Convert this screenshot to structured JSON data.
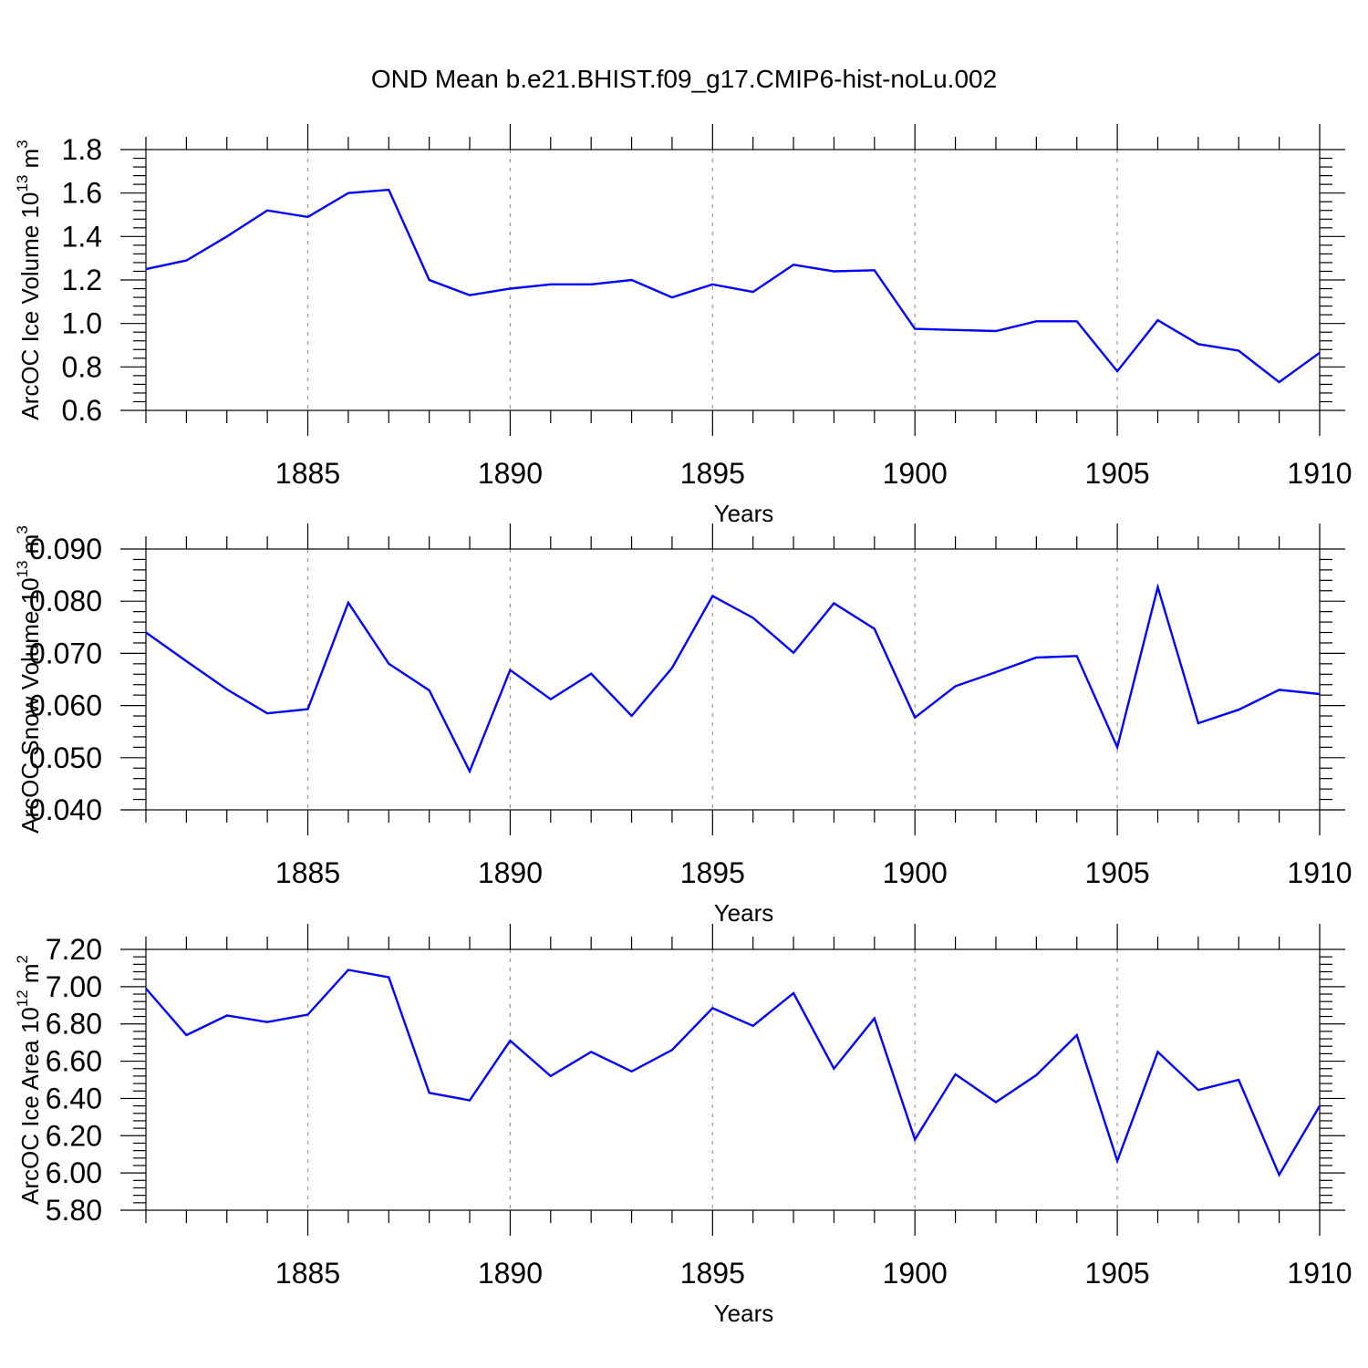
{
  "figure": {
    "title": "OND Mean b.e21.BHIST.f09_g17.CMIP6-hist-noLu.002"
  },
  "chart_data": [
    {
      "type": "line",
      "title": "OND Mean b.e21.BHIST.f09_g17.CMIP6-hist-noLu.002",
      "xlabel": "Years",
      "ylabel": "ArcOC Ice Volume 10",
      "ylabel_exponent": "13",
      "ylabel_unit": " m",
      "ylabel_unit_exponent": "3",
      "xlim": [
        1881,
        1910
      ],
      "ylim": [
        0.6,
        1.8
      ],
      "x_ticks": [
        1885,
        1890,
        1895,
        1900,
        1905,
        1910
      ],
      "y_ticks": [
        "0.6",
        "0.8",
        "1.0",
        "1.2",
        "1.4",
        "1.6",
        "1.8"
      ],
      "y_minor_step": 0.04,
      "grid": "vertical-dashed",
      "line_color": "#0000ff",
      "series": [
        {
          "x": [
            1881,
            1882,
            1883,
            1884,
            1885,
            1886,
            1887,
            1888,
            1889,
            1890,
            1891,
            1892,
            1893,
            1894,
            1895,
            1896,
            1897,
            1898,
            1899,
            1900,
            1901,
            1902,
            1903,
            1904,
            1905,
            1906,
            1907,
            1908,
            1909,
            1910
          ],
          "values": [
            1.25,
            1.29,
            1.4,
            1.52,
            1.49,
            1.6,
            1.615,
            1.2,
            1.13,
            1.16,
            1.18,
            1.18,
            1.2,
            1.12,
            1.18,
            1.145,
            1.27,
            1.24,
            1.245,
            0.975,
            0.97,
            0.965,
            1.01,
            1.01,
            0.78,
            1.015,
            0.905,
            0.875,
            0.73,
            0.865
          ]
        }
      ]
    },
    {
      "type": "line",
      "xlabel": "Years",
      "ylabel": "ArcOC Snow Volume 10",
      "ylabel_exponent": "13",
      "ylabel_unit": " m",
      "ylabel_unit_exponent": "3",
      "xlim": [
        1881,
        1910
      ],
      "ylim": [
        0.04,
        0.09
      ],
      "x_ticks": [
        1885,
        1890,
        1895,
        1900,
        1905,
        1910
      ],
      "y_ticks": [
        "0.040",
        "0.050",
        "0.060",
        "0.070",
        "0.080",
        "0.090"
      ],
      "y_minor_step": 0.002,
      "grid": "vertical-dashed",
      "line_color": "#0000ff",
      "series": [
        {
          "x": [
            1881,
            1882,
            1883,
            1884,
            1885,
            1886,
            1887,
            1888,
            1889,
            1890,
            1891,
            1892,
            1893,
            1894,
            1895,
            1896,
            1897,
            1898,
            1899,
            1900,
            1901,
            1902,
            1903,
            1904,
            1905,
            1906,
            1907,
            1908,
            1909,
            1910
          ],
          "values": [
            0.074,
            0.0685,
            0.0631,
            0.0585,
            0.0593,
            0.0797,
            0.068,
            0.0629,
            0.0474,
            0.0668,
            0.0612,
            0.0661,
            0.058,
            0.0672,
            0.081,
            0.0768,
            0.0701,
            0.0796,
            0.0747,
            0.0577,
            0.0637,
            0.0664,
            0.0692,
            0.0695,
            0.052,
            0.0827,
            0.0566,
            0.0592,
            0.063,
            0.0622
          ]
        }
      ]
    },
    {
      "type": "line",
      "xlabel": "Years",
      "ylabel": "ArcOC Ice Area 10",
      "ylabel_exponent": "12",
      "ylabel_unit": " m",
      "ylabel_unit_exponent": "2",
      "xlim": [
        1881,
        1910
      ],
      "ylim": [
        5.8,
        7.2
      ],
      "x_ticks": [
        1885,
        1890,
        1895,
        1900,
        1905,
        1910
      ],
      "y_ticks": [
        "5.80",
        "6.00",
        "6.20",
        "6.40",
        "6.60",
        "6.80",
        "7.00",
        "7.20"
      ],
      "y_minor_step": 0.04,
      "grid": "vertical-dashed",
      "line_color": "#0000ff",
      "series": [
        {
          "x": [
            1881,
            1882,
            1883,
            1884,
            1885,
            1886,
            1887,
            1888,
            1889,
            1890,
            1891,
            1892,
            1893,
            1894,
            1895,
            1896,
            1897,
            1898,
            1899,
            1900,
            1901,
            1902,
            1903,
            1904,
            1905,
            1906,
            1907,
            1908,
            1909,
            1910
          ],
          "values": [
            6.99,
            6.74,
            6.845,
            6.81,
            6.85,
            7.09,
            7.05,
            6.43,
            6.39,
            6.71,
            6.52,
            6.65,
            6.545,
            6.66,
            6.885,
            6.79,
            6.965,
            6.56,
            6.83,
            6.18,
            6.53,
            6.38,
            6.525,
            6.74,
            6.065,
            6.65,
            6.445,
            6.5,
            5.99,
            6.36
          ]
        }
      ]
    }
  ]
}
